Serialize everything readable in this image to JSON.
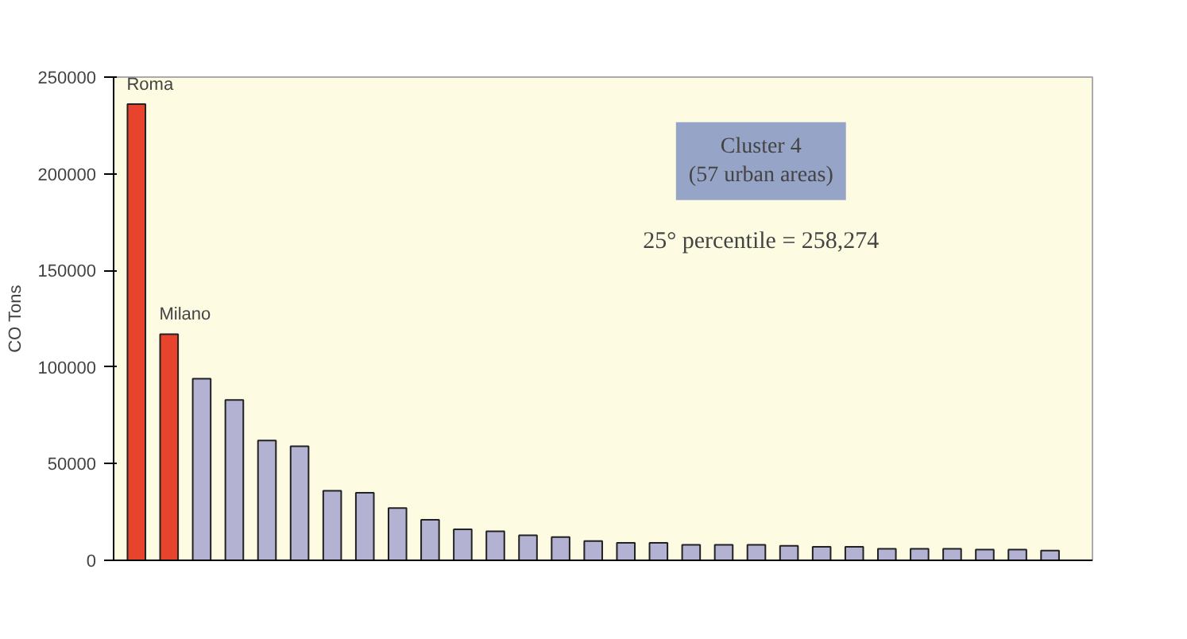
{
  "chart_data": {
    "type": "bar",
    "ylabel": "CO Tons",
    "categories": [
      null,
      null,
      null,
      null,
      null,
      null,
      null,
      null,
      null,
      null,
      null,
      null,
      null,
      null,
      null,
      null,
      null,
      null,
      null,
      null,
      null,
      null,
      null,
      null,
      null,
      null,
      null,
      null,
      null
    ],
    "values": [
      236000,
      117000,
      94000,
      83000,
      62000,
      59000,
      36000,
      35000,
      27000,
      21000,
      16000,
      15000,
      13000,
      12000,
      10000,
      9000,
      9000,
      8000,
      8000,
      8000,
      7500,
      7000,
      7000,
      6000,
      6000,
      6000,
      5500,
      5500,
      5000
    ],
    "colors": [
      "#e8432c",
      "#e8432c",
      "#b4b2d2",
      "#b4b2d2",
      "#b4b2d2",
      "#b4b2d2",
      "#b4b2d2",
      "#b4b2d2",
      "#b4b2d2",
      "#b4b2d2",
      "#b4b2d2",
      "#b4b2d2",
      "#b4b2d2",
      "#b4b2d2",
      "#b4b2d2",
      "#b4b2d2",
      "#b4b2d2",
      "#b4b2d2",
      "#b4b2d2",
      "#b4b2d2",
      "#b4b2d2",
      "#b4b2d2",
      "#b4b2d2",
      "#b4b2d2",
      "#b4b2d2",
      "#b4b2d2",
      "#b4b2d2",
      "#b4b2d2",
      "#b4b2d2"
    ],
    "ylim": [
      0,
      250000
    ],
    "yticks": [
      0,
      50000,
      100000,
      150000,
      200000,
      250000
    ],
    "grid": false,
    "annotations": [
      {
        "text": "Roma",
        "y": 236000
      },
      {
        "text": "Milano",
        "y": 117000
      },
      "Cluster 4\n(57 urban areas)",
      "25° percentile = 258,274"
    ]
  }
}
